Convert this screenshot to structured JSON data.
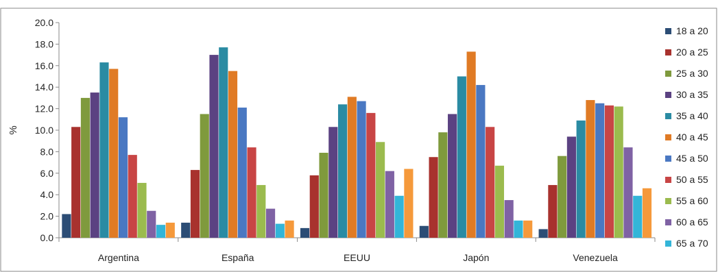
{
  "chart_data": {
    "type": "bar",
    "title": "",
    "xlabel": "",
    "ylabel": "%",
    "ylim": [
      0,
      20
    ],
    "yticks": [
      "0.0",
      "2.0",
      "4.0",
      "6.0",
      "8.0",
      "10.0",
      "12.0",
      "14.0",
      "16.0",
      "18.0",
      "20.0"
    ],
    "grid": false,
    "legend_position": "right",
    "categories": [
      "Argentina",
      "España",
      "EEUU",
      "Japón",
      "Venezuela"
    ],
    "series": [
      {
        "name": "18 a 20",
        "color": "#2c4d75",
        "values": [
          2.2,
          1.4,
          0.9,
          1.1,
          0.8
        ]
      },
      {
        "name": "20 a 25",
        "color": "#a8322e",
        "values": [
          10.3,
          6.3,
          5.8,
          7.5,
          4.9
        ]
      },
      {
        "name": "25 a 30",
        "color": "#7f9a3d",
        "values": [
          13.0,
          11.5,
          7.9,
          9.8,
          7.6
        ]
      },
      {
        "name": "30 a 35",
        "color": "#5b4282",
        "values": [
          13.5,
          17.0,
          10.3,
          11.5,
          9.4
        ]
      },
      {
        "name": "35 a 40",
        "color": "#2a8ba3",
        "values": [
          16.3,
          17.7,
          12.4,
          15.0,
          10.9
        ]
      },
      {
        "name": "40 a 45",
        "color": "#e07b25",
        "values": [
          15.7,
          15.5,
          13.1,
          17.3,
          12.8
        ]
      },
      {
        "name": "45 a 50",
        "color": "#4a78c2",
        "values": [
          11.2,
          12.1,
          12.7,
          14.2,
          12.5
        ]
      },
      {
        "name": "50 a 55",
        "color": "#c84545",
        "values": [
          7.7,
          8.4,
          11.6,
          10.3,
          12.3
        ]
      },
      {
        "name": "55 a 60",
        "color": "#9bbb4e",
        "values": [
          5.1,
          4.9,
          8.9,
          6.7,
          12.2
        ]
      },
      {
        "name": "60 a 65",
        "color": "#7f62a4",
        "values": [
          2.5,
          2.7,
          6.2,
          3.5,
          8.4
        ]
      },
      {
        "name": "65 a 70",
        "color": "#33b5d8",
        "values": [
          1.2,
          1.3,
          3.9,
          1.6,
          3.9
        ]
      },
      {
        "name": "",
        "color": "#f5993b",
        "values": [
          1.4,
          1.6,
          6.4,
          1.6,
          4.6
        ]
      }
    ]
  }
}
